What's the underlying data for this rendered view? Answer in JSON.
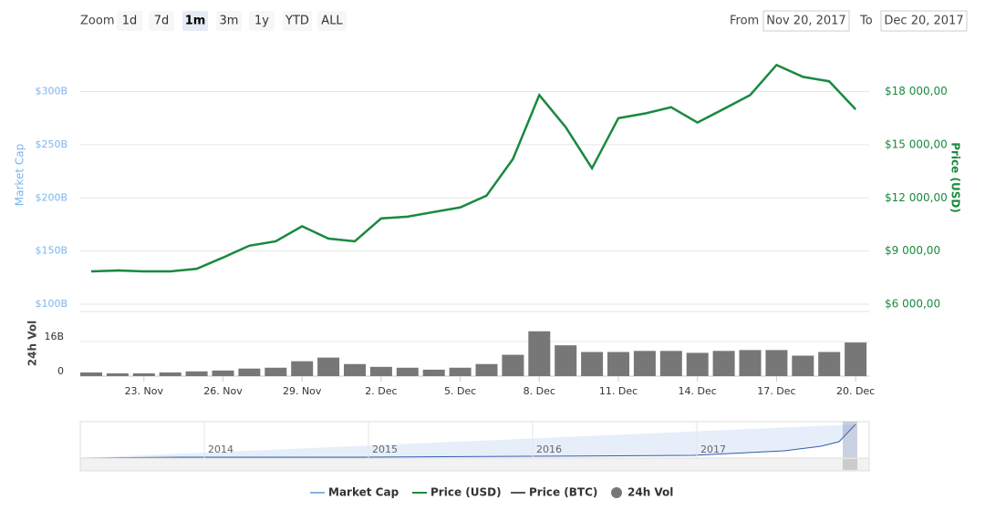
{
  "chart_data": {
    "type": "line",
    "zoom": {
      "label": "Zoom",
      "buttons": [
        "1d",
        "7d",
        "1m",
        "3m",
        "1y",
        "YTD",
        "ALL"
      ],
      "selected_index": 2
    },
    "range": {
      "from_label": "From",
      "from": "Nov 20, 2017",
      "to_label": "To",
      "to": "Dec 20, 2017"
    },
    "ylabel": "Market Cap",
    "y2label": "Price (USD)",
    "vol_label": "24h Vol",
    "categories": [
      null,
      null,
      "23. Nov",
      null,
      null,
      "26. Nov",
      null,
      null,
      "29. Nov",
      null,
      null,
      "2. Dec",
      null,
      null,
      "5. Dec",
      null,
      null,
      "8. Dec",
      null,
      null,
      "11. Dec",
      null,
      null,
      "14. Dec",
      null,
      null,
      "17. Dec",
      null,
      null,
      "20. Dec"
    ],
    "series": [
      {
        "name": "Market Cap",
        "color": "#7cb5ec",
        "values": [
          131,
          132,
          131,
          131,
          133,
          144,
          155,
          159,
          173,
          162,
          159,
          181,
          182,
          187,
          191,
          202,
          237,
          297,
          267,
          228,
          275,
          279,
          285,
          271,
          284,
          297,
          325,
          314,
          310,
          283
        ]
      },
      {
        "name": "Price (USD)",
        "color": "#1a8a3e",
        "axis": "y2",
        "values": [
          7850,
          7900,
          7850,
          7850,
          8000,
          8630,
          9300,
          9550,
          10400,
          9700,
          9550,
          10840,
          10940,
          11200,
          11460,
          12130,
          14190,
          17800,
          15990,
          13670,
          16500,
          16760,
          17120,
          16250,
          17020,
          17800,
          19500,
          18830,
          18570,
          17000
        ]
      },
      {
        "name": "Price (BTC)",
        "color": "#555555"
      },
      {
        "name": "24h Vol",
        "color": "#777777",
        "axis": "vol",
        "values": [
          1.7,
          1.3,
          1.3,
          1.7,
          2.2,
          2.6,
          3.5,
          3.9,
          6.9,
          8.6,
          5.6,
          4.3,
          3.9,
          3.0,
          3.9,
          5.6,
          9.9,
          20.8,
          14.3,
          11.2,
          11.2,
          11.7,
          11.7,
          10.8,
          11.7,
          12.1,
          12.1,
          9.5,
          11.2,
          15.6
        ]
      }
    ],
    "ylim": [
      100,
      345
    ],
    "yticks": [
      {
        "value": 100,
        "label": "$100B"
      },
      {
        "value": 150,
        "label": "$150B"
      },
      {
        "value": 200,
        "label": "$200B"
      },
      {
        "value": 250,
        "label": "$250B"
      },
      {
        "value": 300,
        "label": "$300B"
      }
    ],
    "y2lim": [
      6000,
      20700
    ],
    "y2ticks": [
      {
        "value": 6000,
        "label": "$6 000,00"
      },
      {
        "value": 9000,
        "label": "$9 000,00"
      },
      {
        "value": 12000,
        "label": "$12 000,00"
      },
      {
        "value": 15000,
        "label": "$15 000,00"
      },
      {
        "value": 18000,
        "label": "$18 000,00"
      }
    ],
    "vollim": [
      0,
      30
    ],
    "volticks": [
      0,
      {
        "value": 16,
        "label": "16B"
      }
    ],
    "grid": true,
    "navigator": {
      "labels": [
        "2014",
        "2015",
        "2016",
        "2017"
      ]
    }
  }
}
